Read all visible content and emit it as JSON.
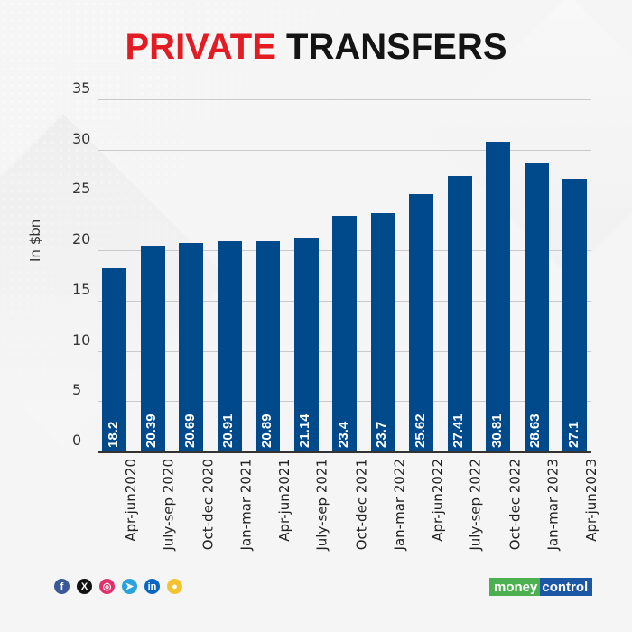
{
  "title": {
    "part1": "PRIVATE",
    "part2": "TRANSFERS",
    "part1_color": "#e31b23",
    "part2_color": "#141414"
  },
  "chart_data": {
    "type": "bar",
    "title": "PRIVATE TRANSFERS",
    "xlabel": "",
    "ylabel": "In $bn",
    "ylim": [
      0,
      35
    ],
    "yticks": [
      0,
      5,
      10,
      15,
      20,
      25,
      30,
      35
    ],
    "grid": true,
    "legend": null,
    "bar_color": "#004a8c",
    "categories": [
      "Apr-jun2020",
      "July-sep 2020",
      "Oct-dec 2020",
      "Jan-mar 2021",
      "Apr-jun2021",
      "July-sep 2021",
      "Oct-dec 2021",
      "Jan-mar 2022",
      "Apr-jun2022",
      "July-sep 2022",
      "Oct-dec 2022",
      "Jan-mar 2023",
      "Apr-jun2023"
    ],
    "values": [
      18.2,
      20.39,
      20.69,
      20.91,
      20.89,
      21.14,
      23.4,
      23.7,
      25.62,
      27.41,
      30.81,
      28.63,
      27.1
    ],
    "value_labels": [
      "18.2",
      "20.39",
      "20.69",
      "20.91",
      "20.89",
      "21.14",
      "23.4",
      "23.7",
      "25.62",
      "27.41",
      "30.81",
      "28.63",
      "27.1"
    ]
  },
  "footer": {
    "social_icons": [
      {
        "name": "facebook-icon",
        "glyph": "f",
        "color": "#3b5998"
      },
      {
        "name": "x-twitter-icon",
        "glyph": "X",
        "color": "#111111"
      },
      {
        "name": "instagram-icon",
        "glyph": "◎",
        "color": "#e1306c"
      },
      {
        "name": "telegram-icon",
        "glyph": "➤",
        "color": "#2aa3dc"
      },
      {
        "name": "linkedin-icon",
        "glyph": "in",
        "color": "#0a66c2"
      },
      {
        "name": "koo-icon",
        "glyph": "●",
        "color": "#f4c430"
      }
    ],
    "logo": {
      "part1": "money",
      "part2": "control"
    }
  }
}
